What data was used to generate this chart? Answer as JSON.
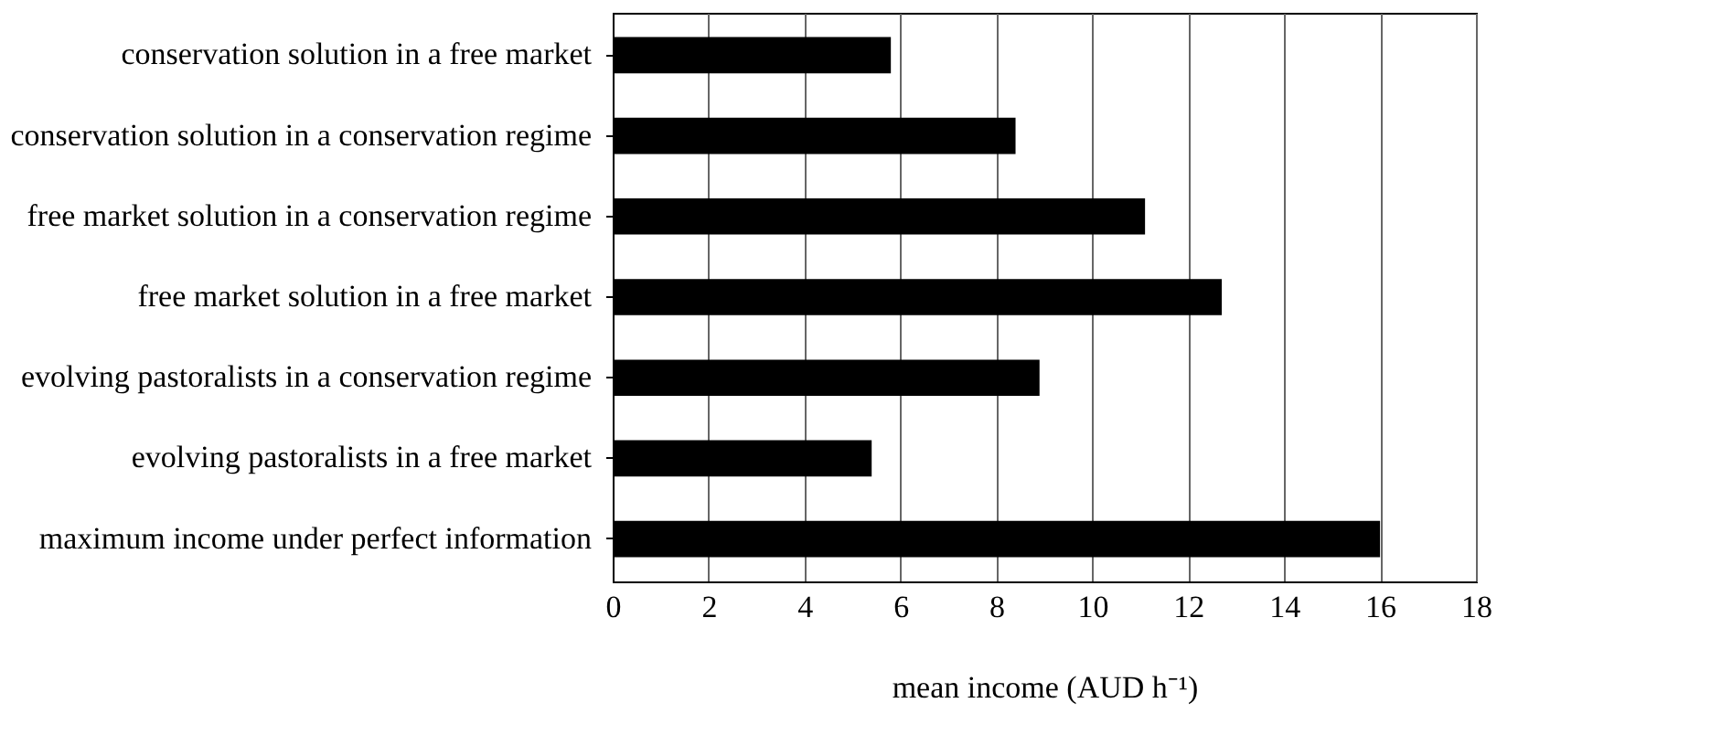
{
  "chart_data": {
    "type": "bar",
    "orientation": "horizontal",
    "xlabel": "mean income (AUD h⁻¹)",
    "categories": [
      "conservation solution in a free market",
      "conservation solution in a conservation regime",
      "free market solution in a conservation regime",
      "free market solution in a free market",
      "evolving pastoralists in a conservation regime",
      "evolving pastoralists in a free market",
      "maximum income under perfect information"
    ],
    "values": [
      5.8,
      8.4,
      11.1,
      12.7,
      8.9,
      5.4,
      16.0
    ],
    "color": "#000000",
    "xlim": [
      0,
      18
    ],
    "xticks": [
      0,
      2,
      4,
      6,
      8,
      10,
      12,
      14,
      16,
      18
    ],
    "grid": "x"
  }
}
